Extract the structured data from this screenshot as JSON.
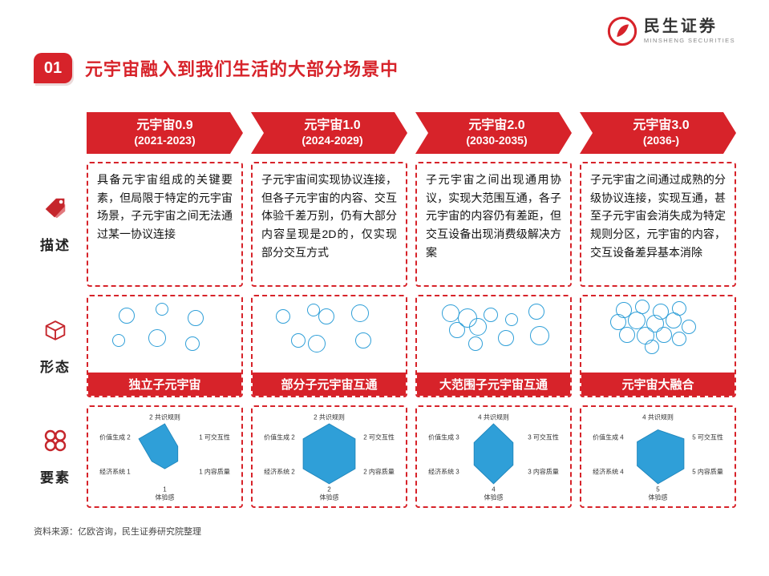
{
  "header": {
    "badge": "01",
    "title": "元宇宙融入到我们生活的大部分场景中",
    "logo": {
      "name": "民生证券",
      "sub": "MINSHENG SECURITIES"
    }
  },
  "timeline": {
    "stages": [
      {
        "line1": "元宇宙0.9",
        "line2": "(2021-2023)"
      },
      {
        "line1": "元宇宙1.0",
        "line2": "(2024-2029)"
      },
      {
        "line1": "元宇宙2.0",
        "line2": "(2030-2035)"
      },
      {
        "line1": "元宇宙3.0",
        "line2": "(2036-)"
      }
    ]
  },
  "rows": {
    "description": {
      "label": "描述",
      "items": [
        "具备元宇宙组成的关键要素，但局限于特定的元宇宙场景，子元宇宙之间无法通过某一协议连接",
        "子元宇宙间实现协议连接，但各子元宇宙的内容、交互体验千差万别，仍有大部分内容呈现是2D的，仅实现部分交互方式",
        "子元宇宙之间出现通用协议，实现大范围互通，各子元宇宙的内容仍有差距，但交互设备出现消费级解决方案",
        "子元宇宙之间通过成熟的分级协议连接，实现互通，甚至子元宇宙会消失成为特定规则分区，元宇宙的内容，交互设备差异基本消除"
      ]
    },
    "form": {
      "label": "形态",
      "banners": [
        "独立子元宇宙",
        "部分子元宇宙互通",
        "大范围子元宇宙互通",
        "元宇宙大融合"
      ]
    },
    "elements": {
      "label": "要素"
    }
  },
  "chart_data": [
    {
      "type": "radar",
      "axes": [
        "共识规则",
        "可交互性",
        "内容质量",
        "体验感",
        "经济系统",
        "价值生成"
      ],
      "values": [
        2,
        1,
        1,
        1,
        1,
        2
      ],
      "max": 5
    },
    {
      "type": "radar",
      "axes": [
        "共识规则",
        "可交互性",
        "内容质量",
        "体验感",
        "经济系统",
        "价值生成"
      ],
      "values": [
        2,
        2,
        2,
        2,
        2,
        2
      ],
      "max": 5
    },
    {
      "type": "radar",
      "axes": [
        "共识规则",
        "可交互性",
        "内容质量",
        "体验感",
        "经济系统",
        "价值生成"
      ],
      "values": [
        4,
        3,
        3,
        4,
        3,
        3
      ],
      "max": 5
    },
    {
      "type": "radar",
      "axes": [
        "共识规则",
        "可交互性",
        "内容质量",
        "体验感",
        "经济系统",
        "价值生成"
      ],
      "values": [
        4,
        5,
        5,
        5,
        4,
        4
      ],
      "max": 5
    }
  ],
  "footer": {
    "source": "资料来源：亿欧咨询，民生证券研究院整理"
  },
  "colors": {
    "accent": "#d7232a",
    "radar": "#2f9fd8",
    "bubble": "#2f9fd8"
  }
}
